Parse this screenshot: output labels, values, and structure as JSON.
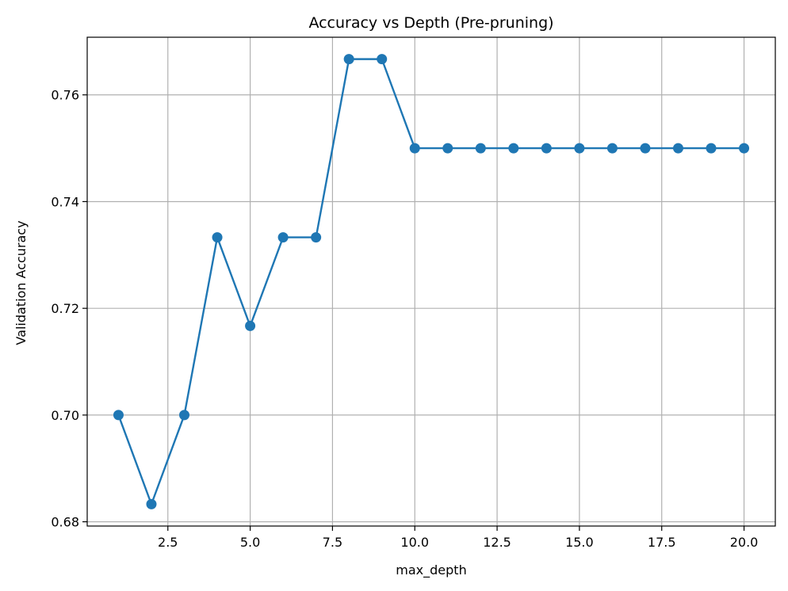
{
  "chart_data": {
    "type": "line",
    "title": "Accuracy vs Depth (Pre-pruning)",
    "xlabel": "max_depth",
    "ylabel": "Validation Accuracy",
    "xlim": [
      0.05,
      20.95
    ],
    "ylim": [
      0.6792,
      0.7708
    ],
    "xticks": [
      2.5,
      5.0,
      7.5,
      10.0,
      12.5,
      15.0,
      17.5,
      20.0
    ],
    "xtick_labels": [
      "2.5",
      "5.0",
      "7.5",
      "10.0",
      "12.5",
      "15.0",
      "17.5",
      "20.0"
    ],
    "yticks": [
      0.68,
      0.7,
      0.72,
      0.74,
      0.76
    ],
    "ytick_labels": [
      "0.68",
      "0.70",
      "0.72",
      "0.74",
      "0.76"
    ],
    "grid": true,
    "marker": "circle",
    "color": "#1f77b4",
    "series": [
      {
        "x": [
          1,
          2,
          3,
          4,
          5,
          6,
          7,
          8,
          9,
          10,
          11,
          12,
          13,
          14,
          15,
          16,
          17,
          18,
          19,
          20
        ],
        "values": [
          0.7,
          0.6833,
          0.7,
          0.7333,
          0.7167,
          0.7333,
          0.7333,
          0.7667,
          0.7667,
          0.75,
          0.75,
          0.75,
          0.75,
          0.75,
          0.75,
          0.75,
          0.75,
          0.75,
          0.75,
          0.75
        ]
      }
    ]
  }
}
